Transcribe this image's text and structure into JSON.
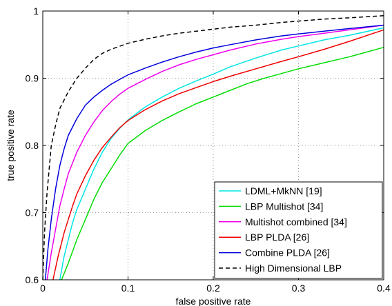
{
  "chart_data": {
    "type": "line",
    "title": "",
    "xlabel": "false positive rate",
    "ylabel": "true positive rate",
    "xlim": [
      0,
      0.4
    ],
    "ylim": [
      0.6,
      1
    ],
    "grid": true,
    "legend_position": "bottom-right",
    "x_ticks": [
      {
        "value": 0,
        "label": "0"
      },
      {
        "value": 0.1,
        "label": "0.1"
      },
      {
        "value": 0.2,
        "label": "0.2"
      },
      {
        "value": 0.3,
        "label": "0.3"
      },
      {
        "value": 0.4,
        "label": "0.4"
      }
    ],
    "y_ticks": [
      {
        "value": 0.6,
        "label": "0.6"
      },
      {
        "value": 0.7,
        "label": "0.7"
      },
      {
        "value": 0.8,
        "label": "0.8"
      },
      {
        "value": 0.9,
        "label": "0.9"
      },
      {
        "value": 1,
        "label": "1"
      }
    ],
    "series": [
      {
        "name": "LDML+MkNN [19]",
        "color": "#00e5e5",
        "dash": "solid",
        "points": [
          [
            0.02,
            0.6
          ],
          [
            0.025,
            0.635
          ],
          [
            0.03,
            0.66
          ],
          [
            0.035,
            0.685
          ],
          [
            0.04,
            0.705
          ],
          [
            0.05,
            0.735
          ],
          [
            0.06,
            0.765
          ],
          [
            0.07,
            0.79
          ],
          [
            0.08,
            0.81
          ],
          [
            0.09,
            0.825
          ],
          [
            0.1,
            0.838
          ],
          [
            0.12,
            0.857
          ],
          [
            0.14,
            0.872
          ],
          [
            0.16,
            0.885
          ],
          [
            0.18,
            0.896
          ],
          [
            0.2,
            0.906
          ],
          [
            0.22,
            0.917
          ],
          [
            0.25,
            0.93
          ],
          [
            0.28,
            0.942
          ],
          [
            0.3,
            0.948
          ],
          [
            0.33,
            0.957
          ],
          [
            0.36,
            0.964
          ],
          [
            0.4,
            0.975
          ]
        ]
      },
      {
        "name": "LBP Multishot [34]",
        "color": "#00dd00",
        "dash": "solid",
        "points": [
          [
            0.022,
            0.6
          ],
          [
            0.03,
            0.625
          ],
          [
            0.04,
            0.66
          ],
          [
            0.05,
            0.69
          ],
          [
            0.06,
            0.72
          ],
          [
            0.07,
            0.745
          ],
          [
            0.08,
            0.765
          ],
          [
            0.09,
            0.785
          ],
          [
            0.1,
            0.803
          ],
          [
            0.12,
            0.822
          ],
          [
            0.14,
            0.837
          ],
          [
            0.16,
            0.85
          ],
          [
            0.18,
            0.862
          ],
          [
            0.2,
            0.872
          ],
          [
            0.22,
            0.882
          ],
          [
            0.24,
            0.892
          ],
          [
            0.26,
            0.9
          ],
          [
            0.28,
            0.907
          ],
          [
            0.3,
            0.914
          ],
          [
            0.33,
            0.923
          ],
          [
            0.36,
            0.932
          ],
          [
            0.4,
            0.946
          ]
        ]
      },
      {
        "name": "Multishot combined [34]",
        "color": "#ee00ee",
        "dash": "solid",
        "points": [
          [
            0.005,
            0.6
          ],
          [
            0.01,
            0.64
          ],
          [
            0.015,
            0.675
          ],
          [
            0.02,
            0.71
          ],
          [
            0.025,
            0.735
          ],
          [
            0.03,
            0.758
          ],
          [
            0.04,
            0.79
          ],
          [
            0.05,
            0.815
          ],
          [
            0.06,
            0.835
          ],
          [
            0.07,
            0.852
          ],
          [
            0.08,
            0.865
          ],
          [
            0.09,
            0.876
          ],
          [
            0.1,
            0.885
          ],
          [
            0.12,
            0.898
          ],
          [
            0.14,
            0.91
          ],
          [
            0.16,
            0.92
          ],
          [
            0.18,
            0.928
          ],
          [
            0.2,
            0.935
          ],
          [
            0.22,
            0.942
          ],
          [
            0.25,
            0.951
          ],
          [
            0.28,
            0.958
          ],
          [
            0.3,
            0.962
          ],
          [
            0.33,
            0.967
          ],
          [
            0.36,
            0.972
          ],
          [
            0.4,
            0.979
          ]
        ]
      },
      {
        "name": "LBP PLDA [26]",
        "color": "#ee0000",
        "dash": "solid",
        "points": [
          [
            0.012,
            0.6
          ],
          [
            0.018,
            0.635
          ],
          [
            0.025,
            0.67
          ],
          [
            0.03,
            0.69
          ],
          [
            0.035,
            0.71
          ],
          [
            0.04,
            0.728
          ],
          [
            0.05,
            0.755
          ],
          [
            0.06,
            0.778
          ],
          [
            0.07,
            0.797
          ],
          [
            0.08,
            0.812
          ],
          [
            0.09,
            0.826
          ],
          [
            0.1,
            0.837
          ],
          [
            0.12,
            0.853
          ],
          [
            0.14,
            0.866
          ],
          [
            0.16,
            0.877
          ],
          [
            0.18,
            0.886
          ],
          [
            0.2,
            0.895
          ],
          [
            0.22,
            0.903
          ],
          [
            0.25,
            0.914
          ],
          [
            0.28,
            0.925
          ],
          [
            0.3,
            0.932
          ],
          [
            0.33,
            0.943
          ],
          [
            0.36,
            0.955
          ],
          [
            0.4,
            0.972
          ]
        ]
      },
      {
        "name": "Combine PLDA [26]",
        "color": "#0000dd",
        "dash": "solid",
        "points": [
          [
            0.003,
            0.6
          ],
          [
            0.006,
            0.645
          ],
          [
            0.01,
            0.69
          ],
          [
            0.015,
            0.735
          ],
          [
            0.02,
            0.77
          ],
          [
            0.025,
            0.795
          ],
          [
            0.03,
            0.815
          ],
          [
            0.04,
            0.84
          ],
          [
            0.05,
            0.86
          ],
          [
            0.06,
            0.872
          ],
          [
            0.07,
            0.882
          ],
          [
            0.08,
            0.891
          ],
          [
            0.09,
            0.898
          ],
          [
            0.1,
            0.905
          ],
          [
            0.12,
            0.915
          ],
          [
            0.14,
            0.924
          ],
          [
            0.16,
            0.932
          ],
          [
            0.18,
            0.939
          ],
          [
            0.2,
            0.945
          ],
          [
            0.22,
            0.95
          ],
          [
            0.25,
            0.957
          ],
          [
            0.28,
            0.963
          ],
          [
            0.3,
            0.966
          ],
          [
            0.33,
            0.97
          ],
          [
            0.36,
            0.974
          ],
          [
            0.4,
            0.979
          ]
        ]
      },
      {
        "name": "High Dimensional LBP",
        "color": "#000000",
        "dash": "dashed",
        "points": [
          [
            0.0,
            0.6
          ],
          [
            0.002,
            0.67
          ],
          [
            0.005,
            0.73
          ],
          [
            0.01,
            0.8
          ],
          [
            0.015,
            0.83
          ],
          [
            0.02,
            0.855
          ],
          [
            0.03,
            0.88
          ],
          [
            0.04,
            0.9
          ],
          [
            0.05,
            0.915
          ],
          [
            0.06,
            0.928
          ],
          [
            0.07,
            0.937
          ],
          [
            0.08,
            0.943
          ],
          [
            0.1,
            0.952
          ],
          [
            0.12,
            0.958
          ],
          [
            0.14,
            0.963
          ],
          [
            0.16,
            0.967
          ],
          [
            0.18,
            0.97
          ],
          [
            0.2,
            0.973
          ],
          [
            0.22,
            0.976
          ],
          [
            0.25,
            0.979
          ],
          [
            0.28,
            0.983
          ],
          [
            0.3,
            0.985
          ],
          [
            0.33,
            0.988
          ],
          [
            0.36,
            0.99
          ],
          [
            0.4,
            0.993
          ]
        ]
      }
    ]
  }
}
